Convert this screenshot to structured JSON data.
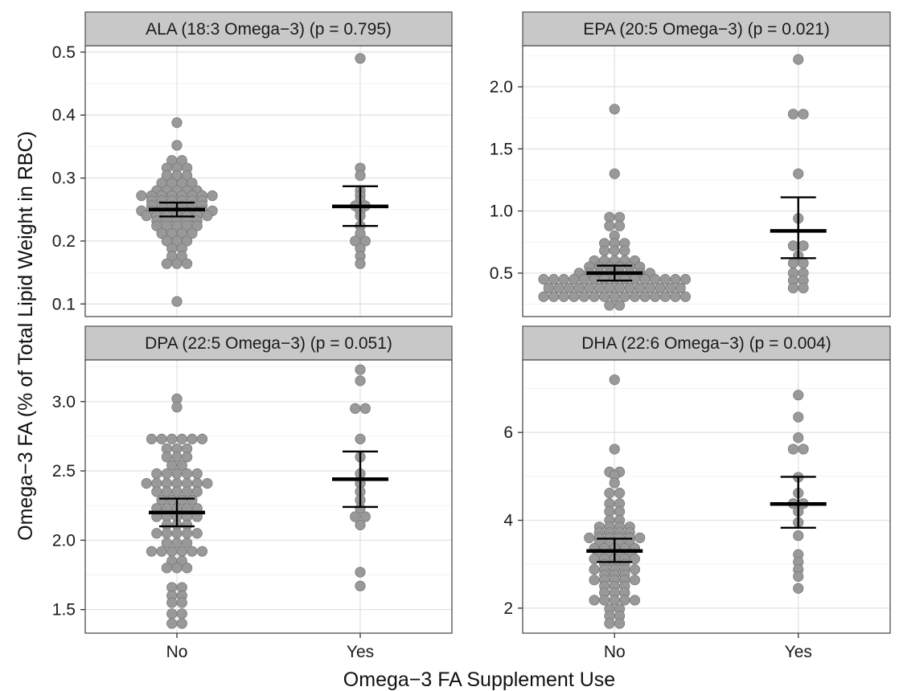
{
  "figure": {
    "ylabel": "Omega−3 FA (% of Total Lipid Weight in RBC)",
    "xlabel": "Omega−3 FA Supplement Use",
    "colors": {
      "point": "#999999",
      "point_stroke": "#7a7a7a",
      "strip": "#c8c8c8",
      "panel_bg": "#ffffff",
      "grid_major": "#e3e3e3",
      "grid_minor": "#f2f2f2",
      "border": "#4d4d4d",
      "summary": "#000000"
    }
  },
  "chart_data": [
    {
      "type": "scatter",
      "subtype": "dot-plot with mean and error bars",
      "title": "ALA (18:3 Omega−3) (p = 0.795)",
      "categories": [
        "No",
        "Yes"
      ],
      "ylim": [
        0.08,
        0.51
      ],
      "yticks": [
        0.1,
        0.2,
        0.3,
        0.4,
        0.5
      ],
      "yticklabels": [
        "0.1",
        "0.2",
        "0.3",
        "0.4",
        "0.5"
      ],
      "grid": true,
      "summary": [
        {
          "category": "No",
          "mean": 0.25,
          "lower": 0.239,
          "upper": 0.261
        },
        {
          "category": "Yes",
          "mean": 0.255,
          "lower": 0.224,
          "upper": 0.287
        }
      ],
      "points": [
        {
          "category": "No",
          "values": [
            0.388,
            0.352,
            0.328,
            0.328,
            0.316,
            0.316,
            0.316,
            0.304,
            0.304,
            0.304,
            0.292,
            0.292,
            0.292,
            0.292,
            0.28,
            0.28,
            0.28,
            0.28,
            0.28,
            0.272,
            0.272,
            0.272,
            0.272,
            0.272,
            0.272,
            0.272,
            0.272,
            0.264,
            0.264,
            0.264,
            0.264,
            0.264,
            0.264,
            0.256,
            0.256,
            0.256,
            0.256,
            0.256,
            0.256,
            0.248,
            0.248,
            0.248,
            0.248,
            0.248,
            0.248,
            0.248,
            0.248,
            0.24,
            0.24,
            0.24,
            0.24,
            0.24,
            0.24,
            0.24,
            0.232,
            0.232,
            0.232,
            0.232,
            0.232,
            0.224,
            0.224,
            0.224,
            0.224,
            0.224,
            0.212,
            0.212,
            0.212,
            0.212,
            0.2,
            0.2,
            0.2,
            0.188,
            0.188,
            0.176,
            0.176,
            0.164,
            0.164,
            0.164,
            0.104
          ]
        },
        {
          "category": "Yes",
          "values": [
            0.49,
            0.316,
            0.304,
            0.28,
            0.272,
            0.264,
            0.256,
            0.256,
            0.248,
            0.24,
            0.224,
            0.212,
            0.2,
            0.2,
            0.188,
            0.176,
            0.164
          ]
        }
      ]
    },
    {
      "type": "scatter",
      "subtype": "dot-plot with mean and error bars",
      "title": "EPA (20:5 Omega−3) (p = 0.021)",
      "categories": [
        "No",
        "Yes"
      ],
      "ylim": [
        0.15,
        2.33
      ],
      "yticks": [
        0.5,
        1.0,
        1.5,
        2.0
      ],
      "yticklabels": [
        "0.5",
        "1.0",
        "1.5",
        "2.0"
      ],
      "grid": true,
      "summary": [
        {
          "category": "No",
          "mean": 0.5,
          "lower": 0.44,
          "upper": 0.56
        },
        {
          "category": "Yes",
          "mean": 0.84,
          "lower": 0.62,
          "upper": 1.11
        }
      ],
      "points": [
        {
          "category": "No",
          "values": [
            1.82,
            1.3,
            0.95,
            0.95,
            0.88,
            0.88,
            0.8,
            0.74,
            0.74,
            0.74,
            0.68,
            0.68,
            0.68,
            0.6,
            0.6,
            0.6,
            0.6,
            0.6,
            0.55,
            0.55,
            0.55,
            0.55,
            0.55,
            0.55,
            0.5,
            0.5,
            0.5,
            0.5,
            0.5,
            0.5,
            0.5,
            0.5,
            0.45,
            0.45,
            0.45,
            0.45,
            0.45,
            0.45,
            0.45,
            0.45,
            0.45,
            0.45,
            0.45,
            0.45,
            0.45,
            0.45,
            0.45,
            0.38,
            0.38,
            0.38,
            0.38,
            0.38,
            0.38,
            0.38,
            0.38,
            0.38,
            0.38,
            0.38,
            0.38,
            0.38,
            0.38,
            0.31,
            0.31,
            0.31,
            0.31,
            0.31,
            0.31,
            0.31,
            0.31,
            0.31,
            0.31,
            0.31,
            0.31,
            0.31,
            0.31,
            0.31,
            0.24,
            0.24
          ]
        },
        {
          "category": "Yes",
          "values": [
            2.22,
            1.78,
            1.78,
            1.3,
            0.94,
            0.72,
            0.72,
            0.64,
            0.58,
            0.58,
            0.5,
            0.5,
            0.44,
            0.44,
            0.38,
            0.38
          ]
        }
      ]
    },
    {
      "type": "scatter",
      "subtype": "dot-plot with mean and error bars",
      "title": "DPA (22:5 Omega−3) (p = 0.051)",
      "categories": [
        "No",
        "Yes"
      ],
      "ylim": [
        1.33,
        3.3
      ],
      "yticks": [
        1.5,
        2.0,
        2.5,
        3.0
      ],
      "yticklabels": [
        "1.5",
        "2.0",
        "2.5",
        "3.0"
      ],
      "grid": true,
      "summary": [
        {
          "category": "No",
          "mean": 2.2,
          "lower": 2.1,
          "upper": 2.3
        },
        {
          "category": "Yes",
          "mean": 2.44,
          "lower": 2.24,
          "upper": 2.64
        }
      ],
      "points": [
        {
          "category": "No",
          "values": [
            3.02,
            2.96,
            2.73,
            2.73,
            2.73,
            2.73,
            2.73,
            2.73,
            2.66,
            2.66,
            2.66,
            2.6,
            2.6,
            2.6,
            2.54,
            2.54,
            2.48,
            2.48,
            2.48,
            2.48,
            2.48,
            2.41,
            2.41,
            2.41,
            2.41,
            2.41,
            2.41,
            2.41,
            2.35,
            2.35,
            2.35,
            2.35,
            2.35,
            2.29,
            2.29,
            2.29,
            2.29,
            2.23,
            2.23,
            2.23,
            2.23,
            2.23,
            2.17,
            2.17,
            2.17,
            2.17,
            2.17,
            2.11,
            2.11,
            2.11,
            2.05,
            2.05,
            2.05,
            2.05,
            2.05,
            1.98,
            1.98,
            1.98,
            1.92,
            1.92,
            1.92,
            1.92,
            1.92,
            1.92,
            1.85,
            1.85,
            1.8,
            1.8,
            1.8,
            1.66,
            1.66,
            1.6,
            1.6,
            1.55,
            1.55,
            1.47,
            1.47,
            1.4,
            1.4
          ]
        },
        {
          "category": "Yes",
          "values": [
            3.23,
            3.15,
            2.95,
            2.95,
            2.73,
            2.6,
            2.48,
            2.41,
            2.35,
            2.29,
            2.23,
            2.17,
            2.17,
            2.11,
            1.77,
            1.67
          ]
        }
      ]
    },
    {
      "type": "scatter",
      "subtype": "dot-plot with mean and error bars",
      "title": "DHA (22:6 Omega−3) (p = 0.004)",
      "categories": [
        "No",
        "Yes"
      ],
      "ylim": [
        1.43,
        7.65
      ],
      "yticks": [
        2,
        4,
        6
      ],
      "yticklabels": [
        "2",
        "4",
        "6"
      ],
      "grid": true,
      "summary": [
        {
          "category": "No",
          "mean": 3.3,
          "lower": 3.05,
          "upper": 3.58
        },
        {
          "category": "Yes",
          "mean": 4.37,
          "lower": 3.83,
          "upper": 4.99
        }
      ],
      "points": [
        {
          "category": "No",
          "values": [
            7.2,
            5.62,
            5.1,
            5.1,
            5.02,
            4.85,
            4.62,
            4.62,
            4.38,
            4.38,
            4.2,
            4.2,
            4.0,
            4.0,
            3.85,
            3.85,
            3.85,
            3.85,
            3.72,
            3.72,
            3.72,
            3.72,
            3.6,
            3.6,
            3.6,
            3.6,
            3.6,
            3.6,
            3.48,
            3.48,
            3.48,
            3.48,
            3.36,
            3.36,
            3.36,
            3.36,
            3.36,
            3.24,
            3.24,
            3.24,
            3.24,
            3.12,
            3.12,
            3.12,
            3.12,
            3.12,
            3.0,
            3.0,
            3.0,
            2.88,
            2.88,
            2.88,
            2.88,
            2.88,
            2.76,
            2.76,
            2.76,
            2.64,
            2.64,
            2.64,
            2.64,
            2.64,
            2.5,
            2.5,
            2.5,
            2.35,
            2.35,
            2.35,
            2.18,
            2.18,
            2.18,
            2.18,
            2.18,
            1.98,
            1.98,
            1.82,
            1.82,
            1.65,
            1.65
          ]
        },
        {
          "category": "Yes",
          "values": [
            6.85,
            6.35,
            5.88,
            5.62,
            5.62,
            4.98,
            4.62,
            4.38,
            4.38,
            4.2,
            3.95,
            3.65,
            3.22,
            3.05,
            2.88,
            2.72,
            2.45
          ]
        }
      ]
    }
  ]
}
